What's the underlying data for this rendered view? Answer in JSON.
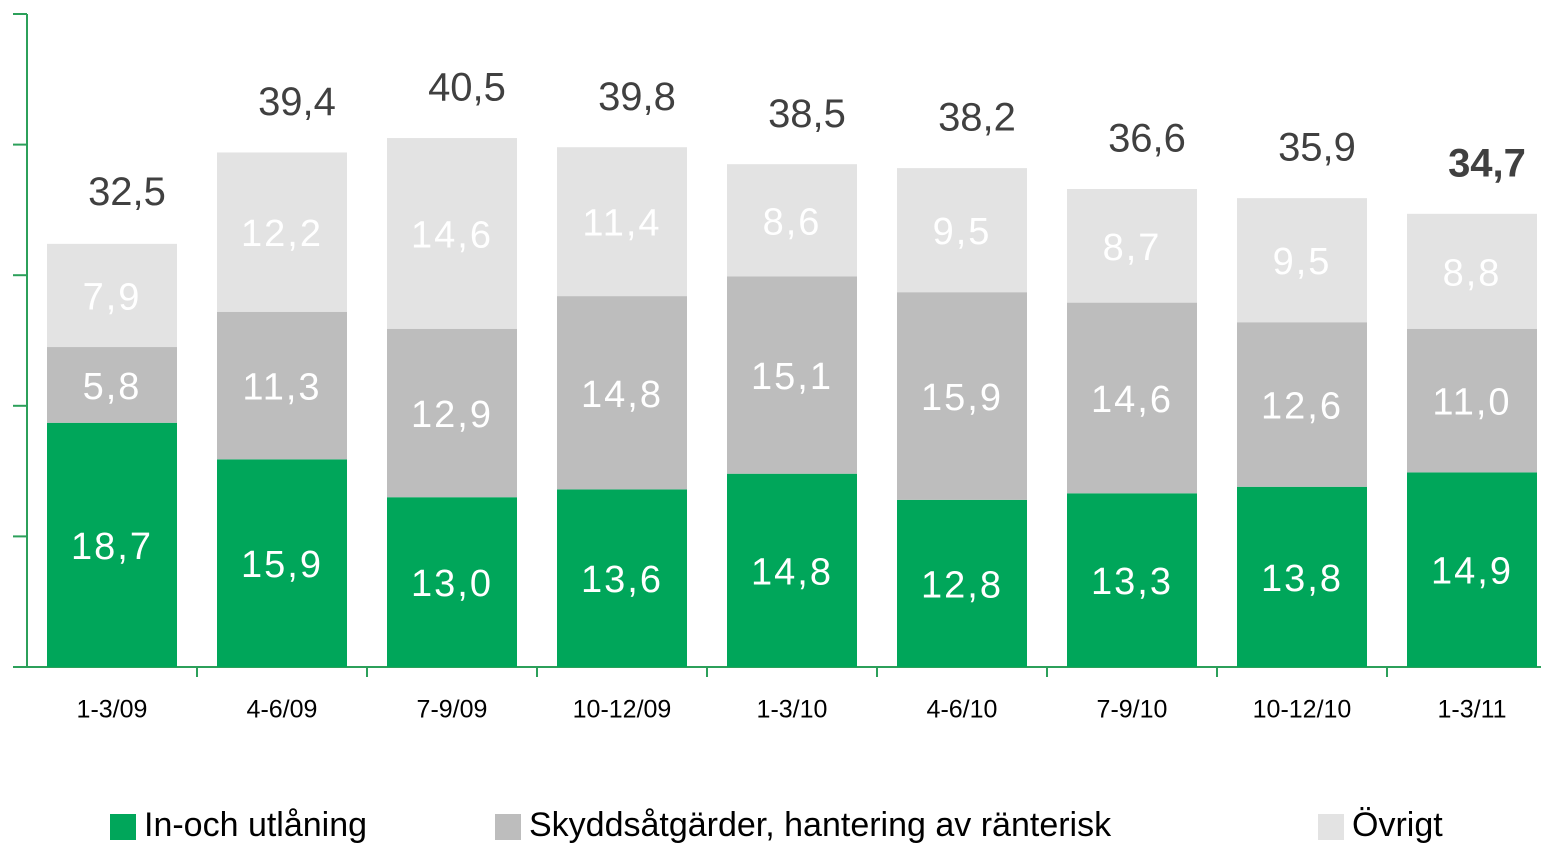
{
  "chart_data": {
    "type": "stacked_bar",
    "categories": [
      "1-3/09",
      "4-6/09",
      "7-9/09",
      "10-12/09",
      "1-3/10",
      "4-6/10",
      "7-9/10",
      "10-12/10",
      "1-3/11"
    ],
    "series": [
      {
        "name": "In-och utlåning",
        "color": "#00a65a",
        "values": [
          18.7,
          15.9,
          13.0,
          13.6,
          14.8,
          12.8,
          13.3,
          13.8,
          14.9
        ],
        "value_labels": [
          "18,7",
          "15,9",
          "13,0",
          "13,6",
          "14,8",
          "12,8",
          "13,3",
          "13,8",
          "14,9"
        ]
      },
      {
        "name": "Skyddsåtgärder, hantering av ränterisk",
        "color": "#bdbdbd",
        "values": [
          5.8,
          11.3,
          12.9,
          14.8,
          15.1,
          15.9,
          14.6,
          12.6,
          11.0
        ],
        "value_labels": [
          "5,8",
          "11,3",
          "12,9",
          "14,8",
          "15,1",
          "15,9",
          "14,6",
          "12,6",
          "11,0"
        ]
      },
      {
        "name": "Övrigt",
        "color": "#e3e3e3",
        "values": [
          7.9,
          12.2,
          14.6,
          11.4,
          8.6,
          9.5,
          8.7,
          9.5,
          8.8
        ],
        "value_labels": [
          "7,9",
          "12,2",
          "14,6",
          "11,4",
          "8,6",
          "9,5",
          "8,7",
          "9,5",
          "8,8"
        ]
      }
    ],
    "totals": [
      32.5,
      39.4,
      40.5,
      39.8,
      38.5,
      38.2,
      36.6,
      35.9,
      34.7
    ],
    "total_labels": [
      "32,5",
      "39,4",
      "40,5",
      "39,8",
      "38,5",
      "38,2",
      "36,6",
      "35,9",
      "34,7"
    ],
    "ylim": [
      0,
      50
    ],
    "yticks": [
      0,
      10,
      20,
      30,
      40,
      50
    ],
    "axis_color": "#2ca05a"
  }
}
